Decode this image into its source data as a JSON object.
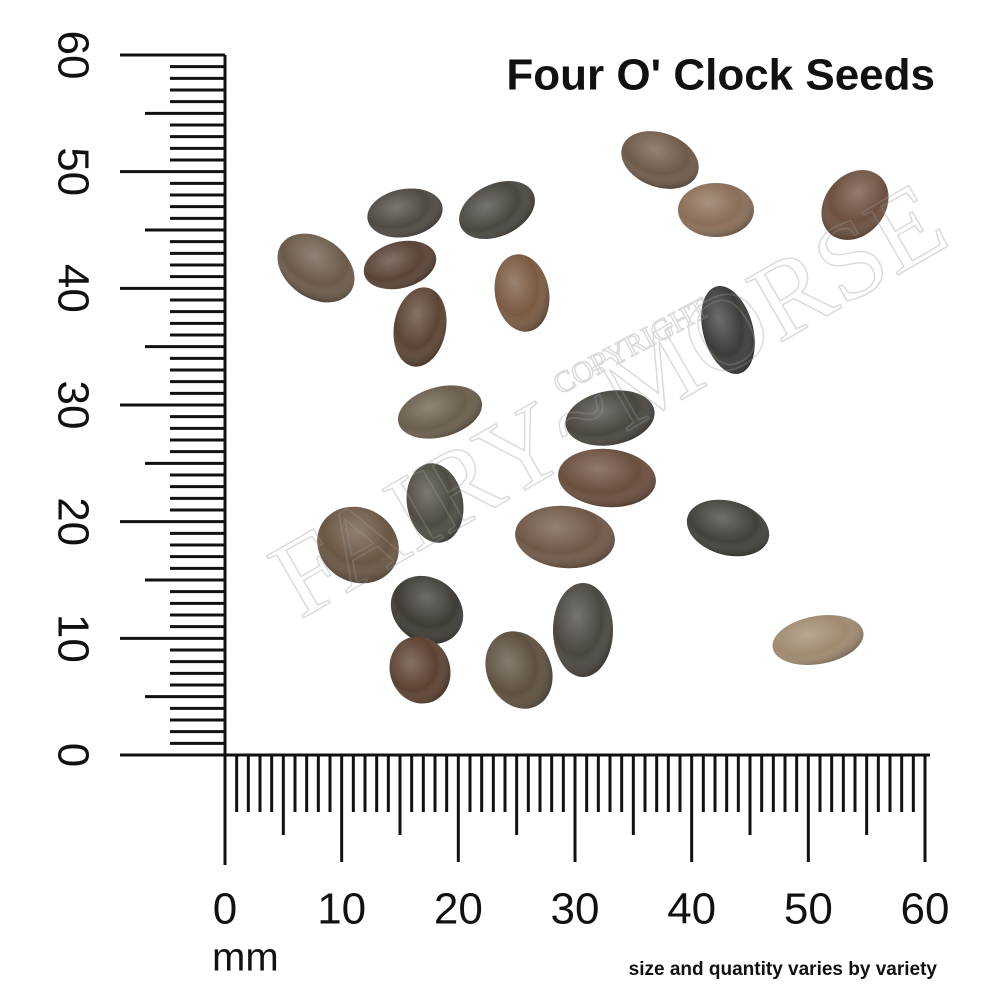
{
  "title": "Four O' Clock Seeds",
  "ruler": {
    "ticks": [
      0,
      10,
      20,
      30,
      40,
      50,
      60
    ],
    "unit": "mm"
  },
  "footnote": "size and quantity varies by variety",
  "watermark": {
    "top": "COPYRIGHT",
    "main": "FAIRY~MORSE"
  }
}
